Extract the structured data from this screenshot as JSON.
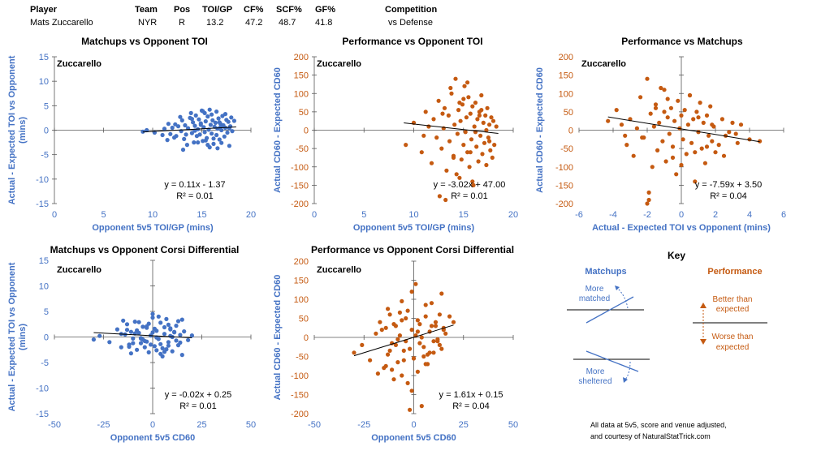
{
  "header": {
    "columns": [
      "Player",
      "Team",
      "Pos",
      "TOI/GP",
      "CF%",
      "SCF%",
      "GF%",
      "Competition"
    ],
    "values": [
      "Mats Zuccarello",
      "NYR",
      "R",
      "13.2",
      "47.2",
      "48.7",
      "41.8",
      "vs Defense"
    ]
  },
  "colors": {
    "matchups": "#4472C4",
    "performance": "#C55A11",
    "axis": "#000000",
    "grid_text": "#595959"
  },
  "key": {
    "title": "Key",
    "matchups_label": "Matchups",
    "performance_label": "Performance",
    "more_matched": "More matched",
    "more_sheltered": "More sheltered",
    "better_than_expected": "Better than expected",
    "worse_than_expected": "Worse than expected",
    "footnote_line1": "All data at 5v5, score and venue adjusted,",
    "footnote_line2": "and courtesy of NaturalStatTrick.com"
  },
  "chart_data": [
    {
      "id": "c1",
      "type": "scatter",
      "series_color": "matchups",
      "title": "Matchups vs Opponent TOI",
      "annotation": "Zuccarello",
      "xlabel": "Opponent 5v5 TOI/GP (mins)",
      "ylabel": "Actual - Expected TOI vs Opponent (mins)",
      "xlim": [
        0,
        20
      ],
      "ylim": [
        -15,
        15
      ],
      "xticks": [
        0,
        5,
        10,
        15,
        20
      ],
      "yticks": [
        -15,
        -10,
        -5,
        0,
        5,
        10,
        15
      ],
      "axis_cross_x": 0,
      "axis_cross_y": 0,
      "equation": "y = 0.11x - 1.37",
      "r_squared": "R² = 0.01",
      "trendline": {
        "slope": 0.11,
        "intercept": -1.37,
        "x_range": [
          9,
          18.5
        ]
      },
      "x": [
        9.0,
        9.4,
        10.2,
        11.0,
        11.2,
        11.5,
        11.8,
        12.0,
        12.2,
        12.3,
        12.6,
        12.9,
        13.0,
        13.2,
        13.3,
        13.5,
        13.6,
        13.8,
        14.0,
        14.1,
        14.2,
        14.3,
        14.4,
        14.5,
        14.6,
        14.7,
        14.8,
        14.9,
        15.0,
        15.1,
        15.2,
        15.3,
        15.3,
        15.4,
        15.5,
        15.6,
        15.7,
        15.8,
        15.9,
        16.0,
        16.0,
        16.1,
        16.2,
        16.3,
        16.4,
        16.5,
        16.5,
        16.6,
        16.7,
        16.8,
        16.9,
        17.0,
        17.0,
        17.1,
        17.2,
        17.3,
        17.4,
        17.5,
        17.6,
        17.7,
        17.8,
        17.9,
        18.0,
        18.1,
        18.3,
        13.1,
        13.9,
        14.6,
        15.8,
        16.9,
        12.8,
        14.3,
        15.6,
        17.4,
        16.2,
        13.4,
        14.9,
        15.1,
        16.6,
        17.8,
        11.6,
        12.4,
        14.0,
        15.4,
        16.8
      ],
      "y": [
        -0.3,
        0.0,
        -0.5,
        -1.0,
        0.3,
        -2.0,
        -0.8,
        0.5,
        -1.5,
        1.2,
        0.8,
        -0.2,
        2.0,
        -1.8,
        1.0,
        -3.0,
        0.4,
        2.5,
        -0.6,
        1.6,
        -2.5,
        0.9,
        3.0,
        -1.2,
        0.2,
        2.2,
        -0.9,
        1.4,
        4.0,
        -2.2,
        0.6,
        3.5,
        -0.4,
        1.8,
        -1.6,
        2.8,
        0.1,
        -3.5,
        1.1,
        3.2,
        -0.7,
        2.0,
        -2.8,
        0.7,
        1.5,
        -1.0,
        3.8,
        0.3,
        2.4,
        -1.9,
        1.3,
        0.0,
        -2.6,
        2.9,
        1.0,
        -1.3,
        0.5,
        2.1,
        -0.5,
        1.7,
        -3.2,
        0.8,
        2.6,
        -0.2,
        1.9,
        -4.0,
        3.5,
        -2.5,
        4.2,
        0.6,
        2.7,
        -0.1,
        -3.0,
        3.3,
        -1.7,
        -0.9,
        1.1,
        3.9,
        -3.7,
        0.4,
        1.3,
        -1.2,
        2.3,
        -2.1,
        1.6
      ]
    },
    {
      "id": "c2",
      "type": "scatter",
      "series_color": "performance",
      "title": "Performance vs Opponent TOI",
      "annotation": "Zuccarello",
      "xlabel": "Opponent 5v5 TOI/GP (mins)",
      "ylabel": "Actual CD60 - Expected CD60",
      "xlim": [
        0,
        20
      ],
      "ylim": [
        -200,
        200
      ],
      "xticks": [
        0,
        5,
        10,
        15,
        20
      ],
      "yticks": [
        -200,
        -150,
        -100,
        -50,
        0,
        50,
        100,
        150,
        200
      ],
      "axis_cross_x": 0,
      "axis_cross_y": 0,
      "equation": "y = -3.02x + 47.00",
      "r_squared": "R² = 0.01",
      "trendline": {
        "slope": -3.02,
        "intercept": 47.0,
        "x_range": [
          9,
          18.5
        ]
      },
      "x": [
        9.2,
        10.0,
        10.8,
        11.2,
        11.5,
        11.8,
        12.0,
        12.3,
        12.5,
        12.8,
        13.0,
        13.1,
        13.3,
        13.5,
        13.6,
        13.8,
        14.0,
        14.1,
        14.2,
        14.4,
        14.5,
        14.6,
        14.7,
        14.8,
        14.9,
        15.0,
        15.1,
        15.2,
        15.3,
        15.4,
        15.5,
        15.6,
        15.7,
        15.8,
        15.9,
        16.0,
        16.1,
        16.2,
        16.3,
        16.4,
        16.5,
        16.6,
        16.7,
        16.8,
        16.9,
        17.0,
        17.1,
        17.2,
        17.3,
        17.4,
        17.5,
        17.6,
        17.7,
        17.8,
        17.9,
        18.0,
        18.1,
        18.3,
        12.6,
        13.7,
        14.3,
        15.0,
        15.9,
        16.8,
        17.6,
        11.0,
        12.9,
        14.0,
        15.4,
        16.2,
        13.2,
        14.6,
        15.7,
        16.6,
        17.3
      ],
      "y": [
        -40,
        20,
        -60,
        50,
        10,
        -90,
        30,
        -20,
        80,
        -50,
        5,
        60,
        -110,
        40,
        -30,
        100,
        -70,
        15,
        140,
        -10,
        55,
        -130,
        25,
        -80,
        70,
        -40,
        120,
        -5,
        35,
        -60,
        90,
        -100,
        45,
        -25,
        65,
        -150,
        10,
        75,
        -45,
        30,
        -85,
        50,
        -15,
        95,
        -65,
        20,
        -35,
        40,
        -95,
        60,
        -20,
        15,
        -55,
        35,
        -75,
        25,
        -40,
        10,
        -180,
        115,
        -120,
        85,
        -140,
        55,
        -30,
        -15,
        45,
        -75,
        130,
        -5,
        -190,
        75,
        -60,
        40,
        0
      ]
    },
    {
      "id": "c3",
      "type": "scatter",
      "series_color": "performance",
      "title": "Performance vs Matchups",
      "annotation": "Zuccarello",
      "xlabel": "Actual - Expected TOI vs Opponent (mins)",
      "ylabel": "Actual CD60 - Expected CD60",
      "xlim": [
        -6,
        6
      ],
      "ylim": [
        -200,
        200
      ],
      "xticks": [
        -6,
        -4,
        -2,
        0,
        2,
        4,
        6
      ],
      "yticks": [
        -200,
        -150,
        -100,
        -50,
        0,
        50,
        100,
        150,
        200
      ],
      "axis_cross_x": 0,
      "axis_cross_y": 0,
      "equation": "y = -7.59x + 3.50",
      "r_squared": "R² = 0.04",
      "trendline": {
        "slope": -7.59,
        "intercept": 3.5,
        "x_range": [
          -4.3,
          4.6
        ]
      },
      "x": [
        -4.3,
        -3.8,
        -3.5,
        -3.2,
        -3.0,
        -2.8,
        -2.6,
        -2.4,
        -2.2,
        -2.0,
        -1.9,
        -1.8,
        -1.7,
        -1.6,
        -1.5,
        -1.4,
        -1.3,
        -1.2,
        -1.1,
        -1.0,
        -0.9,
        -0.8,
        -0.7,
        -0.6,
        -0.5,
        -0.4,
        -0.3,
        -0.2,
        -0.1,
        0.0,
        0.1,
        0.2,
        0.3,
        0.4,
        0.5,
        0.6,
        0.7,
        0.8,
        0.9,
        1.0,
        1.1,
        1.2,
        1.3,
        1.4,
        1.5,
        1.6,
        1.7,
        1.8,
        1.9,
        2.0,
        2.2,
        2.4,
        2.6,
        2.8,
        3.0,
        3.3,
        3.5,
        4.0,
        4.6,
        -2.0,
        -1.5,
        -0.5,
        0.5,
        1.5,
        -3.3,
        -1.0,
        0.0,
        1.0,
        2.5,
        -2.3,
        -0.8,
        0.8,
        1.8,
        3.2,
        -1.9
      ],
      "y": [
        25,
        55,
        15,
        -40,
        30,
        -70,
        5,
        90,
        -20,
        140,
        -190,
        45,
        -100,
        10,
        70,
        -55,
        20,
        115,
        -30,
        50,
        -85,
        35,
        -10,
        60,
        -45,
        25,
        -120,
        80,
        5,
        40,
        -25,
        55,
        -65,
        15,
        95,
        -35,
        30,
        -140,
        50,
        -5,
        75,
        -50,
        20,
        -90,
        40,
        -15,
        65,
        -30,
        10,
        -60,
        -40,
        30,
        -15,
        -5,
        20,
        -35,
        15,
        -25,
        -30,
        -200,
        60,
        -75,
        95,
        -45,
        -15,
        110,
        -95,
        35,
        -70,
        -20,
        85,
        -60,
        15,
        -10,
        -170
      ]
    },
    {
      "id": "c4",
      "type": "scatter",
      "series_color": "matchups",
      "title": "Matchups vs Opponent Corsi Differential",
      "annotation": "Zuccarello",
      "xlabel": "Opponent 5v5 CD60",
      "ylabel": "Actual - Expected TOI vs Opponent (mins)",
      "xlim": [
        -50,
        50
      ],
      "ylim": [
        -15,
        15
      ],
      "xticks": [
        -50,
        -25,
        0,
        25,
        50
      ],
      "yticks": [
        -15,
        -10,
        -5,
        0,
        5,
        10,
        15
      ],
      "axis_cross_x": 0,
      "axis_cross_y": 0,
      "equation": "y = -0.02x + 0.25",
      "r_squared": "R² = 0.01",
      "trendline": {
        "slope": -0.02,
        "intercept": 0.25,
        "x_range": [
          -30,
          20
        ]
      },
      "x": [
        -30,
        -27,
        -22,
        -18,
        -16,
        -14,
        -13,
        -12,
        -11,
        -10,
        -9,
        -8,
        -7,
        -6,
        -5,
        -4,
        -3,
        -2,
        -1,
        0,
        1,
        2,
        3,
        4,
        5,
        6,
        7,
        8,
        9,
        10,
        11,
        12,
        13,
        14,
        15,
        16,
        18,
        20,
        -15,
        -11,
        -6,
        -2,
        2,
        6,
        10,
        -12,
        -8,
        -3,
        0,
        4,
        8,
        12,
        -9,
        -4,
        1,
        5,
        9,
        14,
        -7,
        -1,
        3,
        7,
        11,
        -13,
        -5,
        0,
        6,
        13,
        -10,
        -3,
        2,
        8,
        15,
        -16,
        -6,
        4,
        9
      ],
      "y": [
        -0.5,
        0.2,
        -1.0,
        1.5,
        -2.0,
        0.5,
        2.5,
        -1.5,
        1.0,
        -0.3,
        3.0,
        -2.5,
        0.8,
        -1.2,
        2.0,
        -0.8,
        1.8,
        -3.0,
        0.3,
        4.5,
        -1.8,
        1.2,
        -0.4,
        2.8,
        -2.2,
        0.6,
        3.5,
        -1.0,
        1.5,
        -2.8,
        0.9,
        2.2,
        -1.6,
        0.4,
        -3.5,
        1.1,
        -0.6,
        0.3,
        3.2,
        -3.2,
        -0.2,
        2.6,
        -2.6,
        1.9,
        0.0,
        -1.9,
        1.3,
        -0.9,
        3.8,
        -1.4,
        2.4,
        -0.7,
        0.7,
        -2.0,
        1.6,
        -3.8,
        0.2,
        -1.1,
        2.9,
        -1.5,
        4.0,
        -2.4,
        1.0,
        1.4,
        -0.5,
        0.9,
        -2.9,
        3.1,
        -1.2,
        2.1,
        -0.1,
        -1.7,
        3.4,
        0.6,
        -0.3,
        -3.3,
        1.7
      ]
    },
    {
      "id": "c5",
      "type": "scatter",
      "series_color": "performance",
      "title": "Performance vs Opponent Corsi Differential",
      "annotation": "Zuccarello",
      "xlabel": "Opponent 5v5 CD60",
      "ylabel": "Actual CD60 - Expected CD60",
      "xlim": [
        -50,
        50
      ],
      "ylim": [
        -200,
        200
      ],
      "xticks": [
        -50,
        -25,
        0,
        25,
        50
      ],
      "yticks": [
        -200,
        -150,
        -100,
        -50,
        0,
        50,
        100,
        150,
        200
      ],
      "axis_cross_x": 0,
      "axis_cross_y": 0,
      "equation": "y = 1.61x + 0.15",
      "r_squared": "R² = 0.04",
      "trendline": {
        "slope": 1.61,
        "intercept": 0.15,
        "x_range": [
          -30,
          20
        ]
      },
      "x": [
        -30,
        -26,
        -22,
        -19,
        -17,
        -15,
        -14,
        -13,
        -12,
        -11,
        -10,
        -9,
        -8,
        -7,
        -6,
        -5,
        -4,
        -3,
        -2,
        -1,
        0,
        1,
        2,
        3,
        4,
        5,
        6,
        7,
        8,
        9,
        10,
        11,
        12,
        13,
        14,
        15,
        16,
        18,
        20,
        -18,
        -13,
        -9,
        -5,
        -1,
        3,
        7,
        11,
        -16,
        -11,
        -6,
        -2,
        2,
        6,
        10,
        14,
        -12,
        -7,
        -3,
        1,
        5,
        9,
        13,
        -4,
        -1,
        2,
        6,
        -8,
        4,
        12,
        -14,
        -10,
        0,
        8,
        15,
        -6
      ],
      "y": [
        -40,
        -20,
        -60,
        10,
        40,
        -80,
        25,
        -45,
        60,
        -15,
        -110,
        30,
        -65,
        5,
        45,
        -35,
        -10,
        70,
        -190,
        20,
        -55,
        140,
        -90,
        35,
        0,
        -25,
        55,
        -70,
        15,
        90,
        -40,
        30,
        -5,
        60,
        -30,
        25,
        10,
        55,
        40,
        -95,
        75,
        -20,
        -60,
        120,
        -15,
        -45,
        40,
        20,
        -85,
        95,
        -30,
        45,
        -70,
        -10,
        115,
        -35,
        65,
        -120,
        5,
        -50,
        30,
        -20,
        50,
        -140,
        15,
        85,
        -5,
        -180,
        -10,
        -75,
        35,
        -55,
        -40,
        20,
        -100
      ]
    }
  ]
}
